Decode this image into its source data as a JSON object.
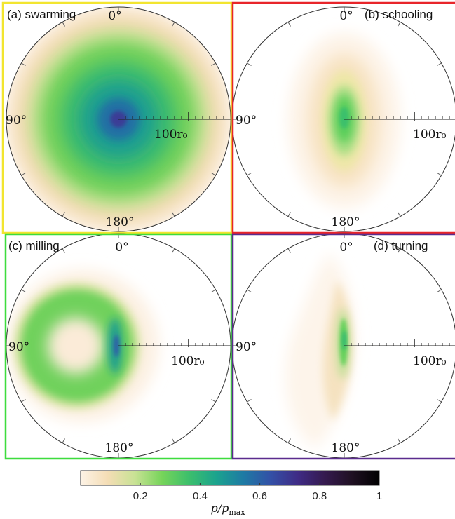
{
  "chart_data": [
    {
      "type": "heatmap",
      "panel_label": "(a) swarming",
      "frame_color": "#f2e52f",
      "angle_labels": [
        "0°",
        "90°",
        "180°"
      ],
      "radial_tick_label": "100r₀",
      "pattern": "disk",
      "peak": 0.65
    },
    {
      "type": "heatmap",
      "panel_label": "(b) schooling",
      "frame_color": "#e8252a",
      "angle_labels": [
        "0°",
        "90°",
        "180°"
      ],
      "radial_tick_label": "100r₀",
      "pattern": "ellipse",
      "peak": 0.4
    },
    {
      "type": "heatmap",
      "panel_label": "(c) milling",
      "frame_color": "#3ddc3d",
      "angle_labels": [
        "0°",
        "90°",
        "180°"
      ],
      "radial_tick_label": "100r₀",
      "pattern": "ring",
      "peak": 0.6
    },
    {
      "type": "heatmap",
      "panel_label": "(d) turning",
      "frame_color": "#5b2c8e",
      "angle_labels": [
        "0°",
        "90°",
        "180°"
      ],
      "radial_tick_label": "100r₀",
      "pattern": "crescent",
      "peak": 0.35
    }
  ],
  "colorbar": {
    "ticks": [
      "0.2",
      "0.4",
      "0.6",
      "0.8",
      "1"
    ],
    "tick_values": [
      0.2,
      0.4,
      0.6,
      0.8,
      1.0
    ],
    "range": [
      0,
      1
    ],
    "label": "p/p",
    "label_sub": "max",
    "colors": [
      "#fdf3e6",
      "#f4ddb5",
      "#c8e294",
      "#76d45a",
      "#3cbf6c",
      "#1ba38e",
      "#1e7aa4",
      "#3350a6",
      "#3f2b85",
      "#351a4e",
      "#1f1022",
      "#000000"
    ]
  }
}
